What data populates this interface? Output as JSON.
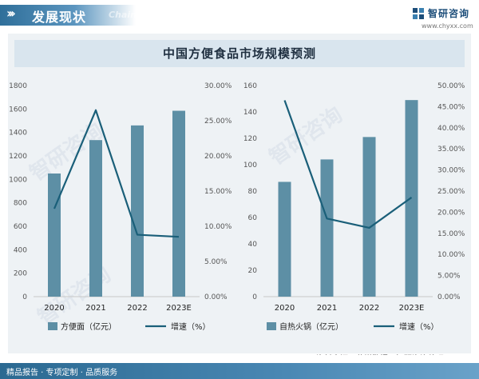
{
  "header": {
    "title": "发展现状",
    "subtitle": "Chain",
    "logo_name": "智研咨询",
    "logo_url": "www.chyxx.com"
  },
  "main_title": "中国方便食品市场规模预测",
  "watermark_text": "智研咨询",
  "source": "资料来源：艾媒数据、智研咨询整理",
  "footer": "精品报告 · 专项定制 · 品质服务",
  "colors": {
    "bar": "#5d8fa5",
    "line": "#1a5f79",
    "header": "#2f6f9a",
    "footer": "#2b6991"
  },
  "chart_data": [
    {
      "type": "bar",
      "categories": [
        "2020",
        "2021",
        "2022",
        "2023E"
      ],
      "series": [
        {
          "name": "方便面（亿元）",
          "type": "bar",
          "axis": "left",
          "values": [
            1050,
            1335,
            1460,
            1585
          ]
        },
        {
          "name": "增速（%）",
          "type": "line",
          "axis": "right",
          "values": [
            12.5,
            26.5,
            8.8,
            8.5
          ]
        }
      ],
      "ylim_left": [
        0,
        1800
      ],
      "yticks_left": [
        "0",
        "200",
        "400",
        "600",
        "800",
        "1000",
        "1200",
        "1400",
        "1600",
        "1800"
      ],
      "ylim_right": [
        0,
        30
      ],
      "yticks_right": [
        "0.00%",
        "5.00%",
        "10.00%",
        "15.00%",
        "20.00%",
        "25.00%",
        "30.00%"
      ],
      "legend": [
        "方便面（亿元）",
        "增速（%）"
      ],
      "legend_position": "bottom",
      "grid": false
    },
    {
      "type": "bar",
      "categories": [
        "2020",
        "2021",
        "2022",
        "2023E"
      ],
      "series": [
        {
          "name": "自热火锅（亿元）",
          "type": "bar",
          "axis": "left",
          "values": [
            87,
            104,
            121,
            149
          ]
        },
        {
          "name": "增速（%）",
          "type": "line",
          "axis": "right",
          "values": [
            46.5,
            18.5,
            16.3,
            23.5
          ]
        }
      ],
      "ylim_left": [
        0,
        160
      ],
      "yticks_left": [
        "0",
        "20",
        "40",
        "60",
        "80",
        "100",
        "120",
        "140",
        "160"
      ],
      "ylim_right": [
        0,
        50
      ],
      "yticks_right": [
        "0.00%",
        "5.00%",
        "10.00%",
        "15.00%",
        "20.00%",
        "25.00%",
        "30.00%",
        "35.00%",
        "40.00%",
        "45.00%",
        "50.00%"
      ],
      "legend": [
        "自热火锅（亿元）",
        "增速（%）"
      ],
      "legend_position": "bottom",
      "grid": false
    }
  ]
}
